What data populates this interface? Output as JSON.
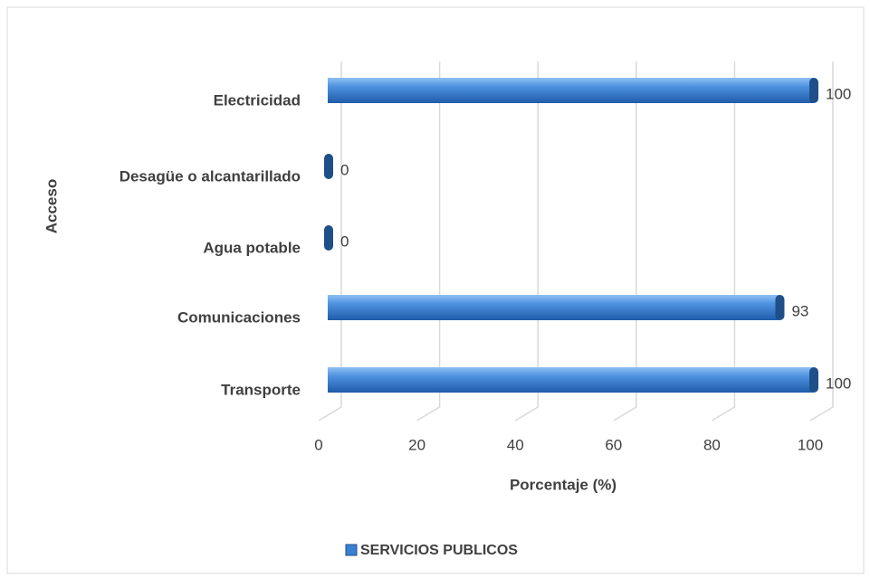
{
  "chart_data": {
    "type": "bar",
    "orientation": "horizontal",
    "x_label": "Porcentaje (%)",
    "y_label": "Acceso",
    "categories": [
      "Electricidad",
      "Desagüe o alcantarillado",
      "Agua potable",
      "Comunicaciones",
      "Transporte"
    ],
    "series": [
      {
        "name": "SERVICIOS PUBLICOS",
        "color": "#3a80d2",
        "values": [
          100,
          0,
          0,
          93,
          100
        ]
      }
    ],
    "xlim": [
      0,
      100
    ],
    "xticks": [
      0,
      20,
      40,
      60,
      80,
      100
    ],
    "grid": true,
    "legend": "bottom"
  }
}
